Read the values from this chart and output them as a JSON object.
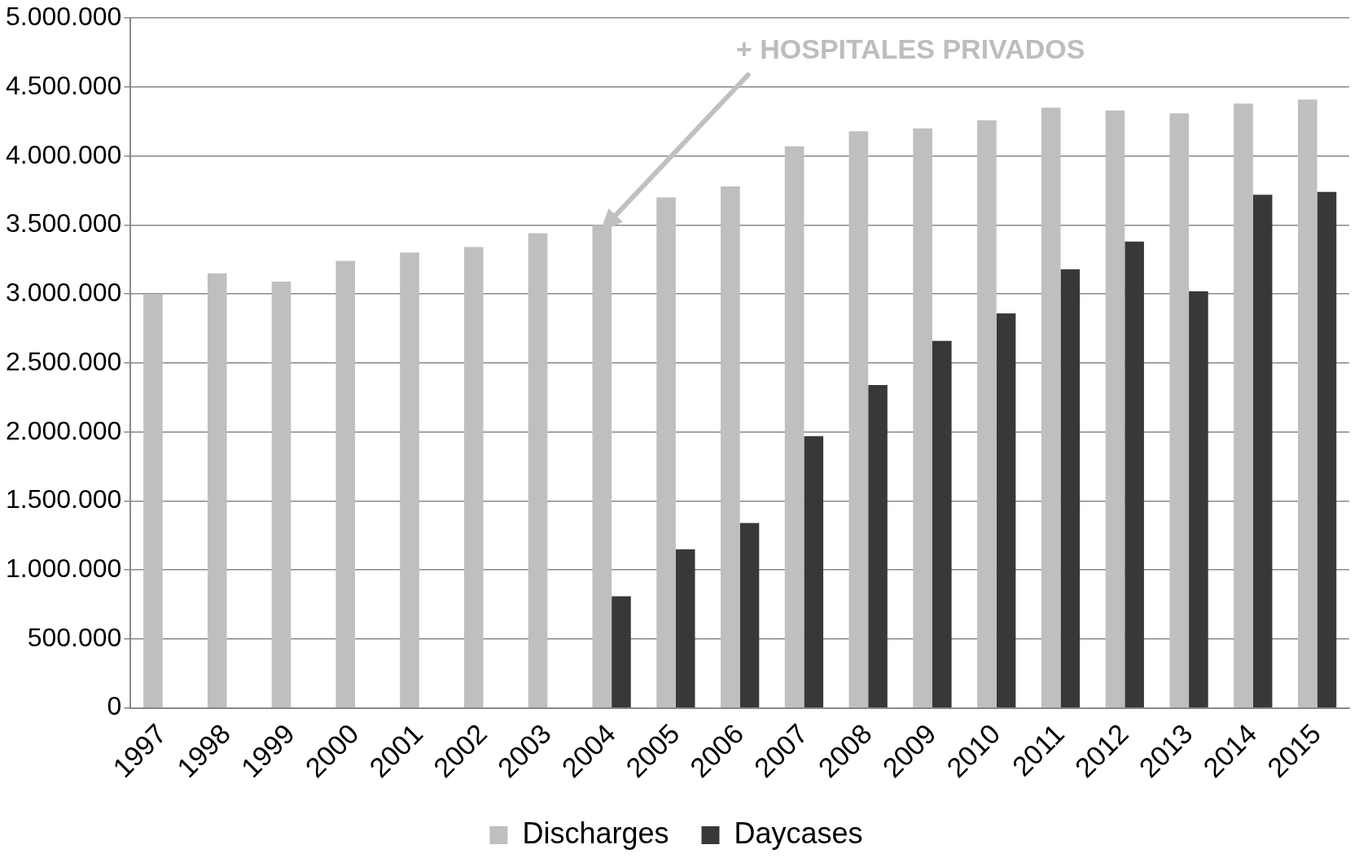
{
  "chart_data": {
    "type": "bar",
    "categories": [
      "1997",
      "1998",
      "1999",
      "2000",
      "2001",
      "2002",
      "2003",
      "2004",
      "2005",
      "2006",
      "2007",
      "2008",
      "2009",
      "2010",
      "2011",
      "2012",
      "2013",
      "2014",
      "2015"
    ],
    "series": [
      {
        "name": "Discharges",
        "color": "#bfbfbf",
        "values": [
          3000000,
          3150000,
          3090000,
          3240000,
          3300000,
          3340000,
          3440000,
          3500000,
          3700000,
          3780000,
          4070000,
          4180000,
          4200000,
          4260000,
          4350000,
          4330000,
          4310000,
          4380000,
          4410000
        ]
      },
      {
        "name": "Daycases",
        "color": "#383838",
        "values": [
          null,
          null,
          null,
          null,
          null,
          null,
          null,
          810000,
          1150000,
          1340000,
          1970000,
          2340000,
          2660000,
          2860000,
          3180000,
          3380000,
          3020000,
          3720000,
          3740000
        ]
      }
    ],
    "ylim": [
      0,
      5000000
    ],
    "yticks": [
      {
        "value": 0,
        "label": "0"
      },
      {
        "value": 500000,
        "label": "500.000"
      },
      {
        "value": 1000000,
        "label": "1.000.000"
      },
      {
        "value": 1500000,
        "label": "1.500.000"
      },
      {
        "value": 2000000,
        "label": "2.000.000"
      },
      {
        "value": 2500000,
        "label": "2.500.000"
      },
      {
        "value": 3000000,
        "label": "3.000.000"
      },
      {
        "value": 3500000,
        "label": "3.500.000"
      },
      {
        "value": 4000000,
        "label": "4.000.000"
      },
      {
        "value": 4500000,
        "label": "4.500.000"
      },
      {
        "value": 5000000,
        "label": "5.000.000"
      }
    ],
    "grid": "y",
    "legend": "bottom",
    "annotations": [
      "+ HOSPITALES PRIVADOS"
    ]
  }
}
